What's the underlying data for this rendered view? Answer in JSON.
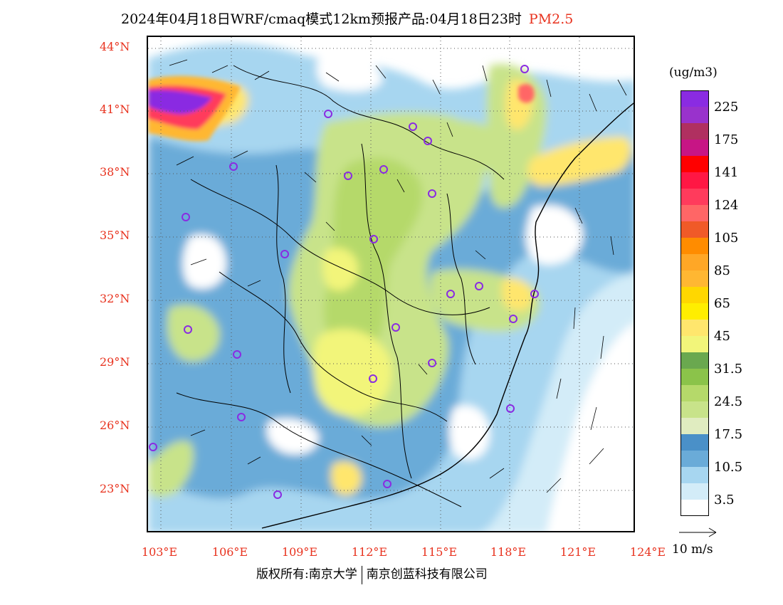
{
  "title": {
    "main": "2024年04月18日WRF/cmaq模式12km预报产品:04月18日23时",
    "pollutant": "PM2.5"
  },
  "axes": {
    "lat_labels": [
      "44°N",
      "41°N",
      "38°N",
      "35°N",
      "32°N",
      "29°N",
      "26°N",
      "23°N"
    ],
    "lon_labels": [
      "103°E",
      "106°E",
      "109°E",
      "112°E",
      "115°E",
      "118°E",
      "121°E",
      "124°E"
    ]
  },
  "legend": {
    "unit": "(ug/m3)",
    "colors": [
      "#8a2be2",
      "#9932cc",
      "#b03060",
      "#c71585",
      "#ff0000",
      "#ff1744",
      "#ff3b5c",
      "#ff6666",
      "#f05a28",
      "#ff8c00",
      "#ffa726",
      "#ffb732",
      "#ffd700",
      "#ffee00",
      "#ffe66d",
      "#f2f57a",
      "#6aa84f",
      "#8bc34a",
      "#b5d96a",
      "#c8e38a",
      "#e0ecc0",
      "#4a90c8",
      "#6aabd8",
      "#a7d6f0",
      "#d3ecf8",
      "#ffffff"
    ],
    "tick_labels": [
      "225",
      "175",
      "141",
      "124",
      "105",
      "85",
      "65",
      "45",
      "31.5",
      "24.5",
      "17.5",
      "10.5",
      "3.5"
    ]
  },
  "wind_reference": {
    "label": "10 m/s"
  },
  "footer": {
    "copyright": "版权所有:南京大学",
    "company": "南京创蓝科技有限公司"
  }
}
